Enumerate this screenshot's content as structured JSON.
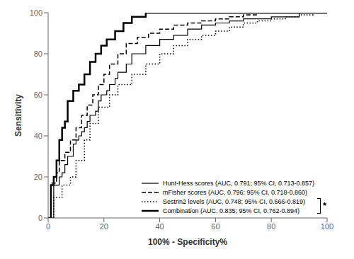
{
  "chart_data": {
    "type": "line",
    "title": "",
    "xlabel": "100% - Specificity%",
    "ylabel": "Sensitivity",
    "xlim": [
      0,
      100
    ],
    "ylim": [
      0,
      100
    ],
    "xticks": [
      0,
      20,
      40,
      60,
      80,
      100
    ],
    "yticks": [
      0,
      20,
      40,
      60,
      80,
      100
    ],
    "grid": false,
    "legend": "lower right",
    "series": [
      {
        "name": "Hunt-Hess scores (AUC, 0.791; 95% CI, 0.713-0.857)",
        "color": "#000000",
        "line_style": "solid",
        "x": [
          0,
          2,
          2,
          4,
          4,
          5,
          5,
          6,
          6,
          7,
          7,
          9,
          9,
          10,
          10,
          11,
          11,
          12,
          12,
          13,
          13,
          14,
          14,
          15,
          15,
          17,
          17,
          18,
          18,
          19,
          19,
          21,
          21,
          22,
          22,
          24,
          24,
          25,
          25,
          28,
          28,
          30,
          30,
          35,
          35,
          40,
          40,
          45,
          45,
          50,
          50,
          55,
          55,
          60,
          60,
          65,
          65,
          70,
          70,
          80,
          80,
          90,
          90,
          100
        ],
        "values": [
          0,
          0,
          16,
          16,
          20,
          20,
          22,
          22,
          26,
          26,
          30,
          30,
          36,
          36,
          38,
          38,
          40,
          40,
          42,
          42,
          44,
          44,
          47,
          47,
          50,
          50,
          52,
          52,
          57,
          57,
          60,
          60,
          62,
          62,
          65,
          65,
          68,
          68,
          71,
          71,
          75,
          75,
          80,
          80,
          84,
          84,
          87,
          87,
          89,
          89,
          92,
          92,
          94,
          94,
          95,
          95,
          96,
          96,
          97,
          97,
          98,
          98,
          100,
          100
        ]
      },
      {
        "name": "mFisher scores (AUC, 0.796; 95% CI, 0.718-0.860)",
        "color": "#000000",
        "line_style": "dashed",
        "x": [
          0,
          1,
          1,
          3,
          3,
          4,
          4,
          6,
          6,
          8,
          8,
          10,
          10,
          12,
          12,
          14,
          14,
          16,
          16,
          18,
          18,
          20,
          20,
          22,
          22,
          25,
          25,
          28,
          28,
          32,
          32,
          36,
          36,
          40,
          40,
          45,
          45,
          50,
          50,
          55,
          55,
          60,
          60,
          65,
          65,
          70,
          70,
          75,
          75,
          80,
          80,
          85,
          85,
          90,
          90,
          95,
          95,
          100
        ],
        "values": [
          0,
          0,
          17,
          17,
          22,
          22,
          28,
          28,
          32,
          32,
          38,
          38,
          44,
          44,
          50,
          50,
          55,
          55,
          60,
          60,
          65,
          65,
          70,
          70,
          75,
          75,
          80,
          80,
          85,
          85,
          88,
          88,
          90,
          90,
          92,
          92,
          94,
          94,
          95,
          95,
          96,
          96,
          97,
          97,
          98,
          98,
          99,
          99,
          100,
          100,
          100,
          100,
          100,
          100,
          100,
          100,
          100,
          100
        ]
      },
      {
        "name": "Sestrin2 levels (AUC, 0.748; 95% CI, 0.666-0.819)",
        "color": "#000000",
        "line_style": "dotted",
        "x": [
          0,
          2,
          2,
          5,
          5,
          8,
          8,
          10,
          10,
          13,
          13,
          15,
          15,
          18,
          18,
          22,
          22,
          25,
          25,
          30,
          30,
          35,
          35,
          40,
          40,
          45,
          45,
          50,
          50,
          55,
          55,
          60,
          60,
          65,
          65,
          70,
          70,
          75,
          75,
          80,
          80,
          85,
          85,
          90,
          90,
          95,
          95,
          100
        ],
        "values": [
          0,
          0,
          10,
          10,
          16,
          16,
          20,
          20,
          28,
          28,
          38,
          38,
          46,
          46,
          54,
          54,
          60,
          60,
          65,
          65,
          70,
          70,
          75,
          75,
          80,
          80,
          84,
          84,
          87,
          87,
          89,
          89,
          91,
          91,
          93,
          93,
          95,
          95,
          96,
          96,
          97,
          97,
          98,
          98,
          99,
          99,
          100,
          100
        ]
      },
      {
        "name": "Combination  (AUC, 0.835; 95% CI, 0.762-0.894)",
        "color": "#000000",
        "line_style": "solid",
        "x": [
          0,
          1,
          1,
          2,
          2,
          3,
          3,
          4,
          4,
          5,
          5,
          6,
          6,
          7,
          7,
          9,
          9,
          11,
          11,
          13,
          13,
          15,
          15,
          17,
          17,
          19,
          19,
          21,
          21,
          24,
          24,
          27,
          27,
          30,
          30,
          35,
          35,
          40,
          40,
          50,
          50,
          60,
          60,
          70,
          70,
          80,
          80,
          100
        ],
        "values": [
          0,
          0,
          16,
          16,
          20,
          20,
          28,
          28,
          38,
          38,
          44,
          44,
          47,
          47,
          57,
          57,
          62,
          62,
          65,
          65,
          70,
          70,
          76,
          76,
          80,
          80,
          84,
          84,
          87,
          87,
          91,
          91,
          95,
          95,
          98,
          98,
          100,
          100,
          100,
          100,
          100,
          100,
          100,
          100,
          100,
          100,
          100,
          100
        ]
      }
    ],
    "annotations": [
      {
        "text": "*",
        "series": [
          "Sestrin2 levels (AUC, 0.748; 95% CI, 0.666-0.819)",
          "Combination  (AUC, 0.835; 95% CI, 0.762-0.894)"
        ]
      }
    ]
  }
}
